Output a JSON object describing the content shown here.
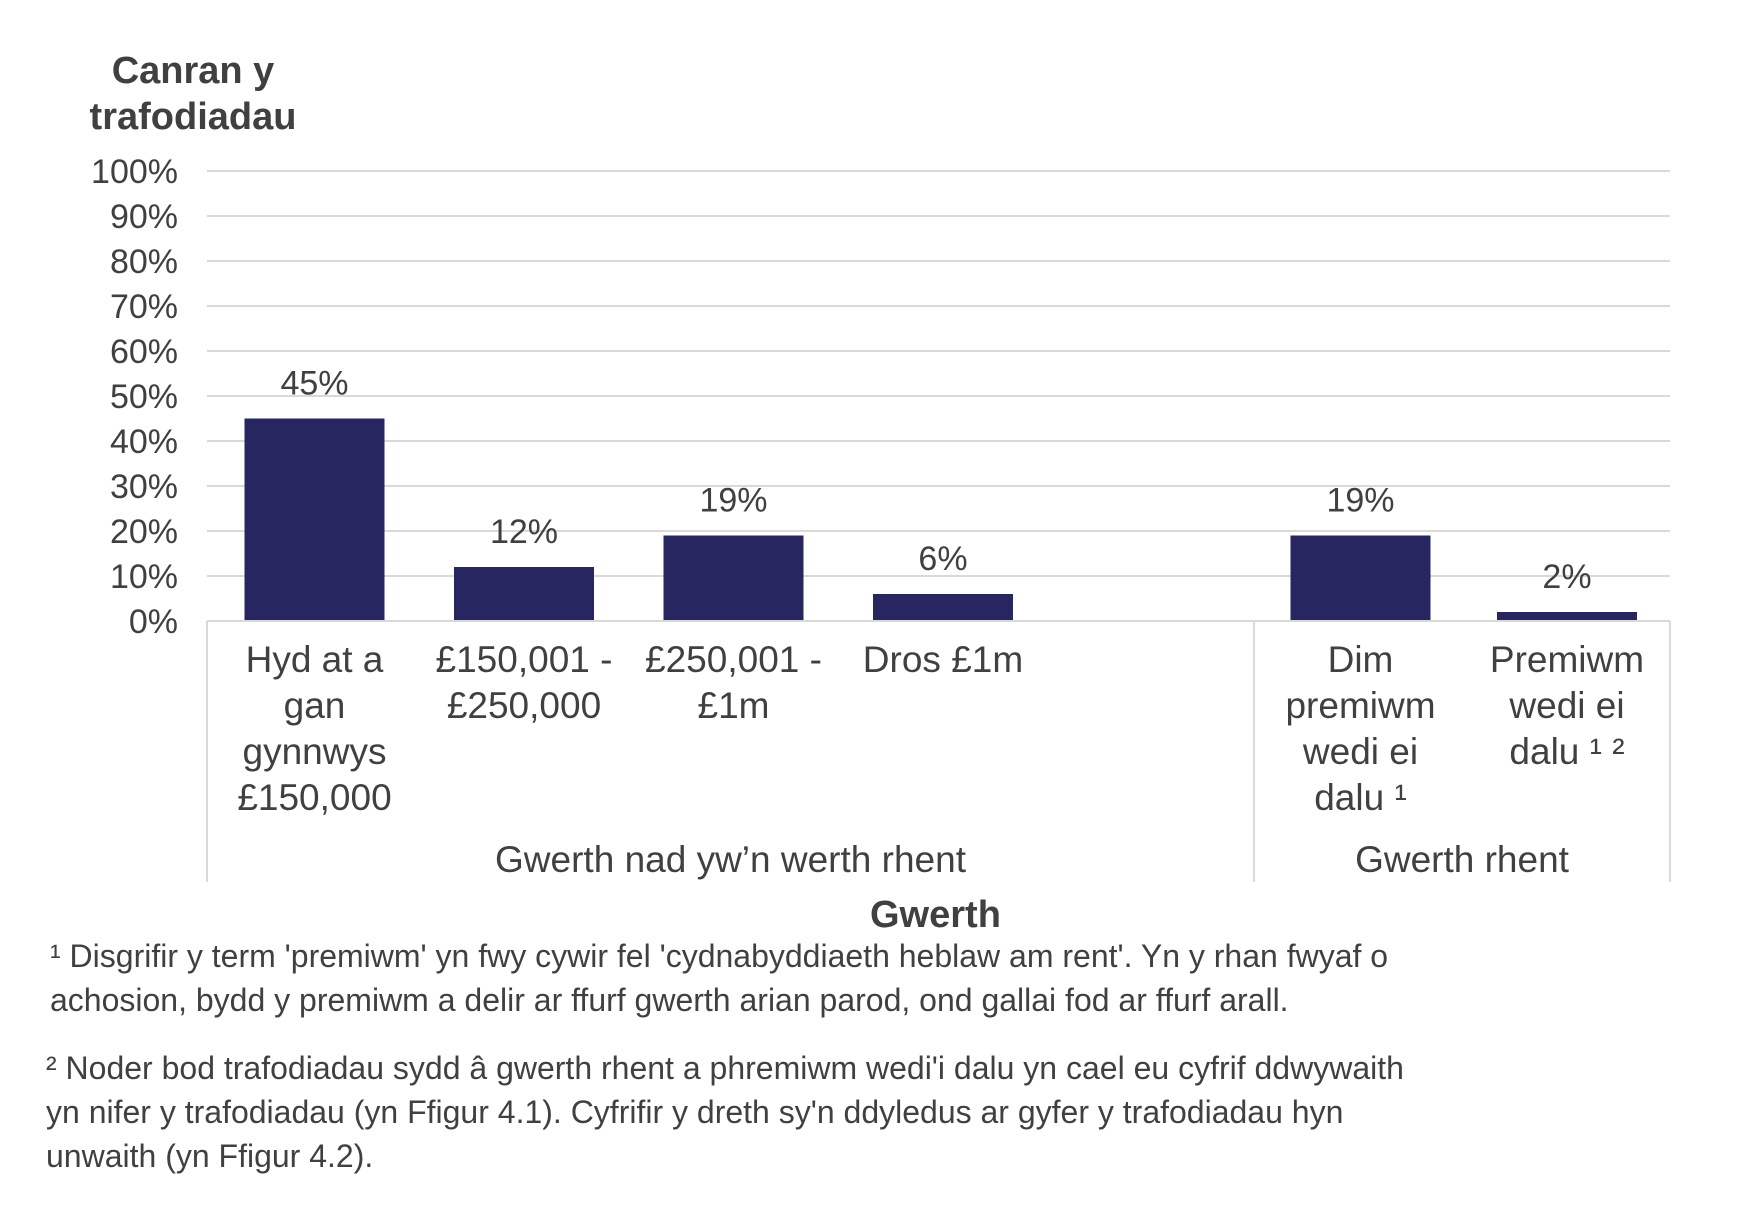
{
  "chart_data": {
    "type": "bar",
    "ylabel": "Canran y trafodiadau",
    "xlabel": "Gwerth",
    "ylim": [
      0,
      100
    ],
    "yticks": [
      "0%",
      "10%",
      "20%",
      "30%",
      "40%",
      "50%",
      "60%",
      "70%",
      "80%",
      "90%",
      "100%"
    ],
    "grid": true,
    "bar_color": "#272660",
    "groups": [
      {
        "label": "Gwerth nad yw’n werth rhent",
        "categories": [
          {
            "lines": [
              "Hyd at a",
              "gan",
              "gynnwys",
              "£150,000"
            ],
            "value": 45,
            "data_label": "45%"
          },
          {
            "lines": [
              "£150,001 -",
              "£250,000"
            ],
            "value": 12,
            "data_label": "12%"
          },
          {
            "lines": [
              "£250,001 -",
              "£1m"
            ],
            "value": 19,
            "data_label": "19%"
          },
          {
            "lines": [
              "Dros £1m"
            ],
            "value": 6,
            "data_label": "6%"
          }
        ]
      },
      {
        "label": "Gwerth rhent",
        "categories": [
          {
            "lines": [
              "Dim",
              "premiwm",
              "wedi ei",
              "dalu ¹"
            ],
            "value": 19,
            "data_label": "19%"
          },
          {
            "lines": [
              "Premiwm",
              "wedi ei",
              "dalu ¹ ²"
            ],
            "value": 2,
            "data_label": "2%"
          }
        ]
      }
    ]
  },
  "footnotes": {
    "note1_line1": "¹ Disgrifir y term 'premiwm' yn fwy cywir fel 'cydnabyddiaeth heblaw am rent'. Yn y rhan fwyaf o",
    "note1_line2": "achosion, bydd y premiwm a delir ar ffurf gwerth arian parod, ond gallai fod ar ffurf arall.",
    "note2_line1": "² Noder bod trafodiadau sydd â gwerth rhent a phremiwm wedi'i dalu yn cael eu cyfrif ddwywaith",
    "note2_line2": "yn nifer y trafodiadau (yn Ffigur 4.1). Cyfrifir y dreth sy'n ddyledus ar gyfer y trafodiadau hyn",
    "note2_line3": "unwaith (yn Ffigur 4.2)."
  }
}
